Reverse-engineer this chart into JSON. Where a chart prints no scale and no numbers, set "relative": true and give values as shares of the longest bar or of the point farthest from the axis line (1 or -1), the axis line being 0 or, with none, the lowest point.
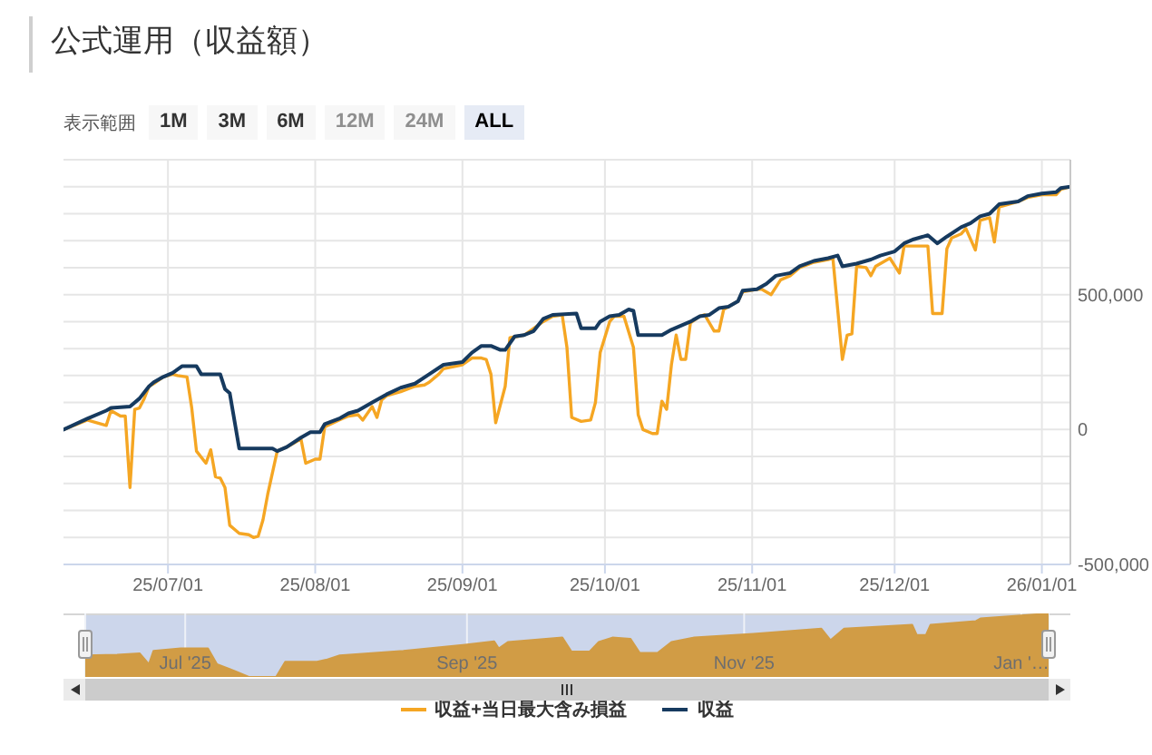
{
  "chart_data": [
    {
      "type": "line",
      "title": "公式運用（収益額）",
      "annotations": [
        "表示範囲",
        "1M",
        "3M",
        "6M",
        "12M",
        "24M",
        "ALL"
      ],
      "series": [
        {
          "name": "収益+当日最大含み損益",
          "color": "#f5a623",
          "x": [
            "2025-06-09",
            "2025-06-14",
            "2025-06-16",
            "2025-06-18",
            "2025-06-19",
            "2025-06-21",
            "2025-06-22",
            "2025-06-23",
            "2025-06-24",
            "2025-06-25",
            "2025-06-26",
            "2025-06-27",
            "2025-06-28",
            "2025-06-30",
            "2025-07-02",
            "2025-07-03",
            "2025-07-05",
            "2025-07-06",
            "2025-07-07",
            "2025-07-09",
            "2025-07-10",
            "2025-07-11",
            "2025-07-12",
            "2025-07-13",
            "2025-07-14",
            "2025-07-16",
            "2025-07-18",
            "2025-07-19",
            "2025-07-20",
            "2025-07-21",
            "2025-07-22",
            "2025-07-24",
            "2025-07-26",
            "2025-07-28",
            "2025-07-29",
            "2025-07-30",
            "2025-08-01",
            "2025-08-02",
            "2025-08-03",
            "2025-08-06",
            "2025-08-08",
            "2025-08-10",
            "2025-08-11",
            "2025-08-13",
            "2025-08-14",
            "2025-08-15",
            "2025-08-16",
            "2025-08-19",
            "2025-08-22",
            "2025-08-24",
            "2025-08-25",
            "2025-08-27",
            "2025-08-28",
            "2025-09-01",
            "2025-09-03",
            "2025-09-05",
            "2025-09-06",
            "2025-09-07",
            "2025-09-08",
            "2025-09-10",
            "2025-09-11",
            "2025-09-14",
            "2025-09-18",
            "2025-09-20",
            "2025-09-22",
            "2025-09-23",
            "2025-09-24",
            "2025-09-26",
            "2025-09-28",
            "2025-09-29",
            "2025-09-30",
            "2025-10-02",
            "2025-10-03",
            "2025-10-05",
            "2025-10-07",
            "2025-10-08",
            "2025-10-09",
            "2025-10-11",
            "2025-10-12",
            "2025-10-13",
            "2025-10-14",
            "2025-10-15",
            "2025-10-16",
            "2025-10-17",
            "2025-10-18",
            "2025-10-19",
            "2025-10-21",
            "2025-10-22",
            "2025-10-24",
            "2025-10-25",
            "2025-10-26",
            "2025-10-29",
            "2025-10-30",
            "2025-11-02",
            "2025-11-03",
            "2025-11-05",
            "2025-11-07",
            "2025-11-09",
            "2025-11-11",
            "2025-11-14",
            "2025-11-17",
            "2025-11-18",
            "2025-11-20",
            "2025-11-21",
            "2025-11-22",
            "2025-11-23",
            "2025-11-25",
            "2025-11-26",
            "2025-11-27",
            "2025-11-30",
            "2025-12-02",
            "2025-12-03",
            "2025-12-05",
            "2025-12-08",
            "2025-12-09",
            "2025-12-11",
            "2025-12-12",
            "2025-12-13",
            "2025-12-15",
            "2025-12-16",
            "2025-12-18",
            "2025-12-19",
            "2025-12-21",
            "2025-12-22",
            "2025-12-23",
            "2025-12-27",
            "2025-12-29",
            "2026-01-01",
            "2026-01-04",
            "2026-01-05",
            "2026-01-07"
          ],
          "values": [
            0,
            35000,
            25000,
            15000,
            70000,
            50000,
            50000,
            -215000,
            75000,
            80000,
            115000,
            160000,
            170000,
            195000,
            205000,
            200000,
            195000,
            80000,
            -80000,
            -125000,
            -75000,
            -175000,
            -180000,
            -215000,
            -355000,
            -385000,
            -390000,
            -400000,
            -395000,
            -335000,
            -240000,
            -80000,
            -65000,
            -45000,
            -35000,
            -125000,
            -110000,
            -110000,
            10000,
            35000,
            50000,
            55000,
            35000,
            85000,
            45000,
            110000,
            125000,
            140000,
            160000,
            165000,
            175000,
            205000,
            225000,
            240000,
            265000,
            265000,
            260000,
            205000,
            25000,
            160000,
            340000,
            350000,
            400000,
            420000,
            425000,
            305000,
            45000,
            30000,
            35000,
            100000,
            285000,
            400000,
            420000,
            420000,
            305000,
            55000,
            0,
            -15000,
            -15000,
            105000,
            75000,
            240000,
            350000,
            260000,
            260000,
            395000,
            420000,
            425000,
            365000,
            365000,
            445000,
            475000,
            510000,
            520000,
            520000,
            500000,
            555000,
            570000,
            600000,
            620000,
            630000,
            635000,
            260000,
            350000,
            355000,
            605000,
            600000,
            570000,
            605000,
            635000,
            580000,
            680000,
            680000,
            680000,
            430000,
            430000,
            670000,
            710000,
            725000,
            745000,
            665000,
            775000,
            785000,
            695000,
            825000,
            845000,
            860000,
            870000,
            870000,
            890000,
            900000
          ]
        },
        {
          "name": "収益",
          "color": "#163a5f",
          "x": [
            "2025-06-09",
            "2025-06-14",
            "2025-06-18",
            "2025-06-19",
            "2025-06-23",
            "2025-06-25",
            "2025-06-27",
            "2025-06-28",
            "2025-06-30",
            "2025-07-02",
            "2025-07-04",
            "2025-07-07",
            "2025-07-08",
            "2025-07-12",
            "2025-07-13",
            "2025-07-14",
            "2025-07-16",
            "2025-07-23",
            "2025-07-24",
            "2025-07-26",
            "2025-07-29",
            "2025-07-31",
            "2025-08-02",
            "2025-08-03",
            "2025-08-06",
            "2025-08-08",
            "2025-08-10",
            "2025-08-13",
            "2025-08-16",
            "2025-08-19",
            "2025-08-22",
            "2025-08-25",
            "2025-08-28",
            "2025-09-01",
            "2025-09-03",
            "2025-09-05",
            "2025-09-07",
            "2025-09-09",
            "2025-09-10",
            "2025-09-12",
            "2025-09-14",
            "2025-09-16",
            "2025-09-18",
            "2025-09-20",
            "2025-09-25",
            "2025-09-26",
            "2025-09-29",
            "2025-09-30",
            "2025-10-02",
            "2025-10-04",
            "2025-10-06",
            "2025-10-07",
            "2025-10-08",
            "2025-10-13",
            "2025-10-15",
            "2025-10-17",
            "2025-10-19",
            "2025-10-21",
            "2025-10-23",
            "2025-10-25",
            "2025-10-27",
            "2025-10-29",
            "2025-10-30",
            "2025-11-02",
            "2025-11-04",
            "2025-11-06",
            "2025-11-09",
            "2025-11-11",
            "2025-11-14",
            "2025-11-17",
            "2025-11-19",
            "2025-11-20",
            "2025-11-23",
            "2025-11-26",
            "2025-11-28",
            "2025-12-01",
            "2025-12-03",
            "2025-12-05",
            "2025-12-08",
            "2025-12-10",
            "2025-12-12",
            "2025-12-15",
            "2025-12-17",
            "2025-12-19",
            "2025-12-21",
            "2025-12-23",
            "2025-12-27",
            "2025-12-29",
            "2026-01-01",
            "2026-01-04",
            "2026-01-05",
            "2026-01-07"
          ],
          "values": [
            0,
            40000,
            70000,
            80000,
            85000,
            115000,
            160000,
            175000,
            195000,
            210000,
            235000,
            235000,
            205000,
            205000,
            150000,
            135000,
            -70000,
            -70000,
            -80000,
            -65000,
            -30000,
            -10000,
            -10000,
            20000,
            40000,
            60000,
            70000,
            100000,
            130000,
            155000,
            170000,
            205000,
            240000,
            250000,
            285000,
            310000,
            310000,
            295000,
            295000,
            345000,
            350000,
            365000,
            410000,
            425000,
            430000,
            375000,
            375000,
            400000,
            420000,
            425000,
            445000,
            440000,
            350000,
            350000,
            370000,
            385000,
            400000,
            420000,
            425000,
            450000,
            455000,
            475000,
            515000,
            520000,
            540000,
            570000,
            580000,
            605000,
            625000,
            635000,
            645000,
            605000,
            615000,
            630000,
            645000,
            660000,
            690000,
            705000,
            720000,
            690000,
            715000,
            750000,
            765000,
            790000,
            800000,
            835000,
            845000,
            865000,
            875000,
            880000,
            895000,
            900000
          ]
        }
      ],
      "xlim": [
        "2025-06-09",
        "2026-01-07"
      ],
      "xticks": [
        {
          "value": "2025-07-01",
          "label": "25/07/01"
        },
        {
          "value": "2025-08-01",
          "label": "25/08/01"
        },
        {
          "value": "2025-09-01",
          "label": "25/09/01"
        },
        {
          "value": "2025-10-01",
          "label": "25/10/01"
        },
        {
          "value": "2025-11-01",
          "label": "25/11/01"
        },
        {
          "value": "2025-12-01",
          "label": "25/12/01"
        },
        {
          "value": "2026-01-01",
          "label": "26/01/01"
        }
      ],
      "ylim": [
        -500000,
        1000000
      ],
      "yticks": [
        {
          "value": -500000,
          "label": "-500,000"
        },
        {
          "value": -400000,
          "label": null
        },
        {
          "value": -300000,
          "label": null
        },
        {
          "value": -200000,
          "label": null
        },
        {
          "value": -100000,
          "label": null
        },
        0,
        {
          "value": 100000,
          "label": null
        },
        {
          "value": 200000,
          "label": null
        },
        {
          "value": 300000,
          "label": null
        },
        {
          "value": 400000,
          "label": null
        },
        {
          "value": 500000,
          "label": "500,000"
        },
        {
          "value": 600000,
          "label": null
        },
        {
          "value": 700000,
          "label": null
        },
        {
          "value": 800000,
          "label": null
        },
        {
          "value": 900000,
          "label": null
        },
        {
          "value": 1000000,
          "label": null
        }
      ],
      "grid": true,
      "legend": "bottom"
    },
    {
      "type": "area",
      "relative": true,
      "color": "#d19c45",
      "x": [
        "2025-06-09",
        "2025-06-16",
        "2025-06-21",
        "2025-06-23",
        "2025-06-24",
        "2025-06-30",
        "2025-07-06",
        "2025-07-08",
        "2025-07-12",
        "2025-07-15",
        "2025-07-21",
        "2025-07-23",
        "2025-07-30",
        "2025-08-01",
        "2025-08-04",
        "2025-08-18",
        "2025-09-01",
        "2025-09-07",
        "2025-09-08",
        "2025-09-10",
        "2025-09-22",
        "2025-09-24",
        "2025-09-28",
        "2025-09-30",
        "2025-10-03",
        "2025-10-07",
        "2025-10-09",
        "2025-10-13",
        "2025-10-16",
        "2025-10-21",
        "2025-11-03",
        "2025-11-18",
        "2025-11-20",
        "2025-11-23",
        "2025-12-08",
        "2025-12-09",
        "2025-12-11",
        "2025-12-12",
        "2025-12-22",
        "2025-12-23",
        "2026-01-07"
      ],
      "values": [
        0.34,
        0.35,
        0.37,
        0.2,
        0.41,
        0.45,
        0.45,
        0.2,
        0.09,
        0,
        0,
        0.24,
        0.24,
        0.27,
        0.34,
        0.41,
        0.51,
        0.56,
        0.45,
        0.55,
        0.62,
        0.4,
        0.4,
        0.55,
        0.62,
        0.6,
        0.38,
        0.38,
        0.55,
        0.62,
        0.68,
        0.76,
        0.58,
        0.76,
        0.82,
        0.66,
        0.66,
        0.82,
        0.88,
        0.92,
        1
      ],
      "xlim": [
        "2025-06-09",
        "2026-01-07"
      ],
      "xticks": [
        {
          "value": "2025-07-01",
          "label": "Jul '25"
        },
        {
          "value": "2025-09-01",
          "label": "Sep '25"
        },
        {
          "value": "2025-11-01",
          "label": "Nov '25"
        },
        {
          "value": "2026-01-01",
          "label": "Jan '…"
        }
      ],
      "grid": "x"
    }
  ]
}
